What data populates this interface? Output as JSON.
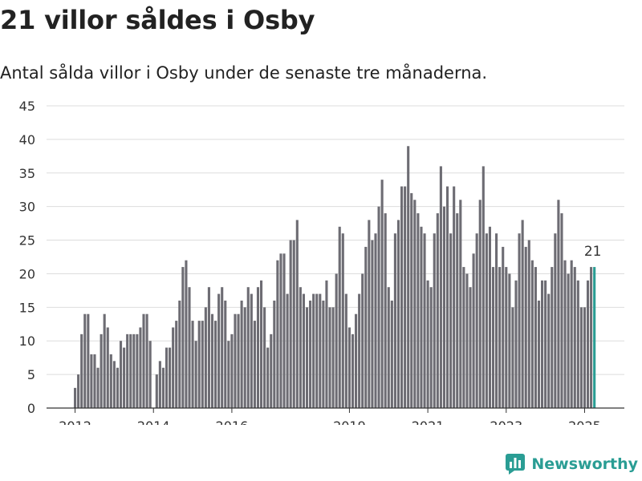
{
  "header": {
    "title": "21 villor såldes i Osby",
    "subtitle": "Antal sålda villor i Osby under de senaste tre månaderna."
  },
  "brand": {
    "name": "Newsworthy",
    "icon": "newsworthy-logo-icon"
  },
  "colors": {
    "bar": "#6d6c73",
    "highlight": "#2a9d94",
    "grid": "#dddddd",
    "axis": "#333333",
    "text": "#333333"
  },
  "chart_data": {
    "type": "bar",
    "title": "21 villor såldes i Osby",
    "subtitle": "Antal sålda villor i Osby under de senaste tre månaderna.",
    "xlabel": "",
    "ylabel": "",
    "ylim": [
      0,
      45
    ],
    "yticks": [
      0,
      5,
      10,
      15,
      20,
      25,
      30,
      35,
      40,
      45
    ],
    "xticks": [
      {
        "label": "2012",
        "index": 0
      },
      {
        "label": "2014",
        "index": 24
      },
      {
        "label": "2016",
        "index": 48
      },
      {
        "label": "2019",
        "index": 84
      },
      {
        "label": "2021",
        "index": 108
      },
      {
        "label": "2023",
        "index": 132
      },
      {
        "label": "2025",
        "index": 156
      }
    ],
    "grid": true,
    "highlight_label": "21",
    "values": [
      3,
      5,
      11,
      14,
      14,
      8,
      8,
      6,
      11,
      14,
      12,
      8,
      7,
      6,
      10,
      9,
      11,
      11,
      11,
      11,
      12,
      14,
      14,
      10,
      0,
      5,
      7,
      6,
      9,
      9,
      12,
      13,
      16,
      21,
      22,
      18,
      13,
      10,
      13,
      13,
      15,
      18,
      14,
      13,
      17,
      18,
      16,
      10,
      11,
      14,
      14,
      16,
      15,
      18,
      17,
      13,
      18,
      19,
      15,
      9,
      11,
      16,
      22,
      23,
      23,
      17,
      25,
      25,
      28,
      18,
      17,
      15,
      16,
      17,
      17,
      17,
      16,
      19,
      15,
      15,
      20,
      27,
      26,
      17,
      12,
      11,
      14,
      17,
      20,
      24,
      28,
      25,
      26,
      30,
      34,
      29,
      18,
      16,
      26,
      28,
      33,
      33,
      39,
      32,
      31,
      29,
      27,
      26,
      19,
      18,
      26,
      29,
      36,
      30,
      33,
      26,
      33,
      29,
      31,
      21,
      20,
      18,
      23,
      26,
      31,
      36,
      26,
      27,
      21,
      26,
      21,
      24,
      21,
      20,
      15,
      19,
      26,
      28,
      24,
      25,
      22,
      21,
      16,
      19,
      19,
      17,
      21,
      26,
      31,
      29,
      22,
      20,
      22,
      21,
      19,
      15,
      15,
      19,
      21,
      21
    ]
  }
}
